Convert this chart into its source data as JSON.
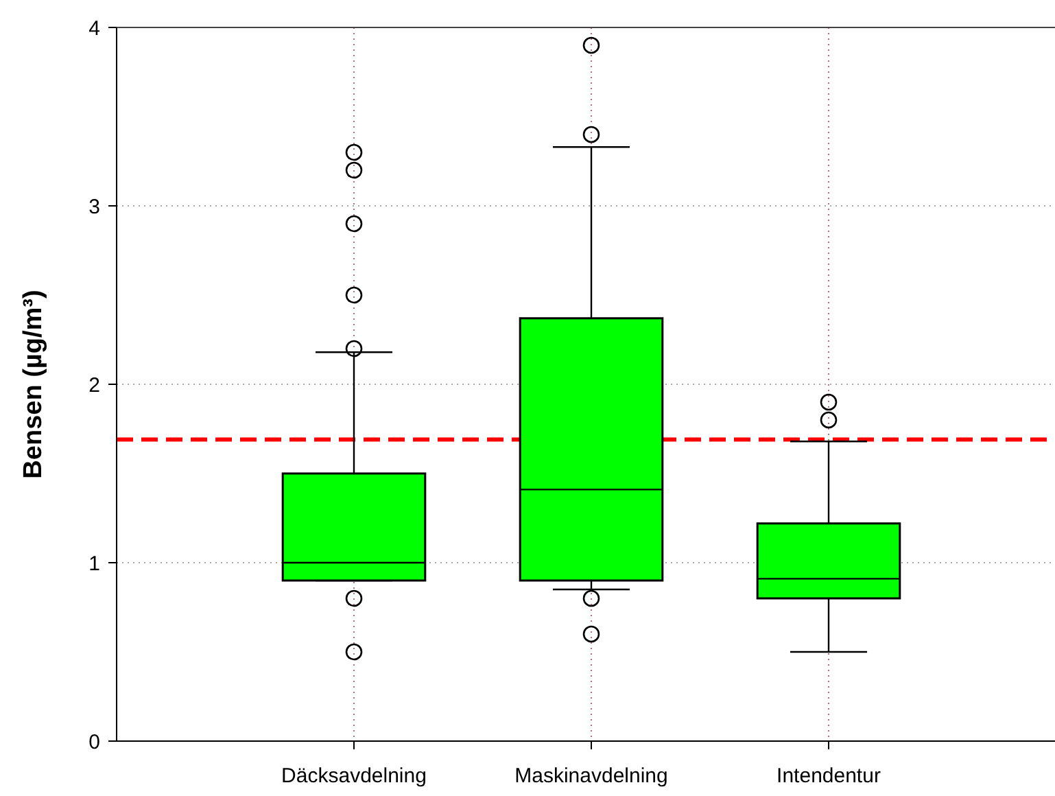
{
  "chart_data": {
    "type": "box",
    "ylabel": "Bensen (µg/m³)",
    "categories": [
      "Däcksavdelning",
      "Maskinavdelning",
      "Intendentur"
    ],
    "color": "#00ff00",
    "boxes": [
      {
        "low": 0.9,
        "q1": 0.9,
        "median": 1.0,
        "q3": 1.5,
        "high": 2.18,
        "outliers": [
          3.3,
          3.2,
          2.9,
          2.5,
          2.2,
          0.8,
          0.5
        ]
      },
      {
        "low": 0.85,
        "q1": 0.9,
        "median": 1.41,
        "q3": 2.37,
        "high": 3.33,
        "outliers": [
          3.9,
          3.4,
          0.8,
          0.6
        ]
      },
      {
        "low": 0.5,
        "q1": 0.8,
        "median": 0.91,
        "q3": 1.22,
        "high": 1.68,
        "outliers": [
          1.9,
          1.8
        ]
      }
    ],
    "ylim": [
      0,
      4
    ],
    "yticks": [
      0,
      1,
      2,
      3,
      4
    ],
    "grid": true,
    "ref_lines": [
      {
        "axis": "y",
        "value": 1.69,
        "color": "#ff0000",
        "line_style": "dashed"
      }
    ]
  }
}
